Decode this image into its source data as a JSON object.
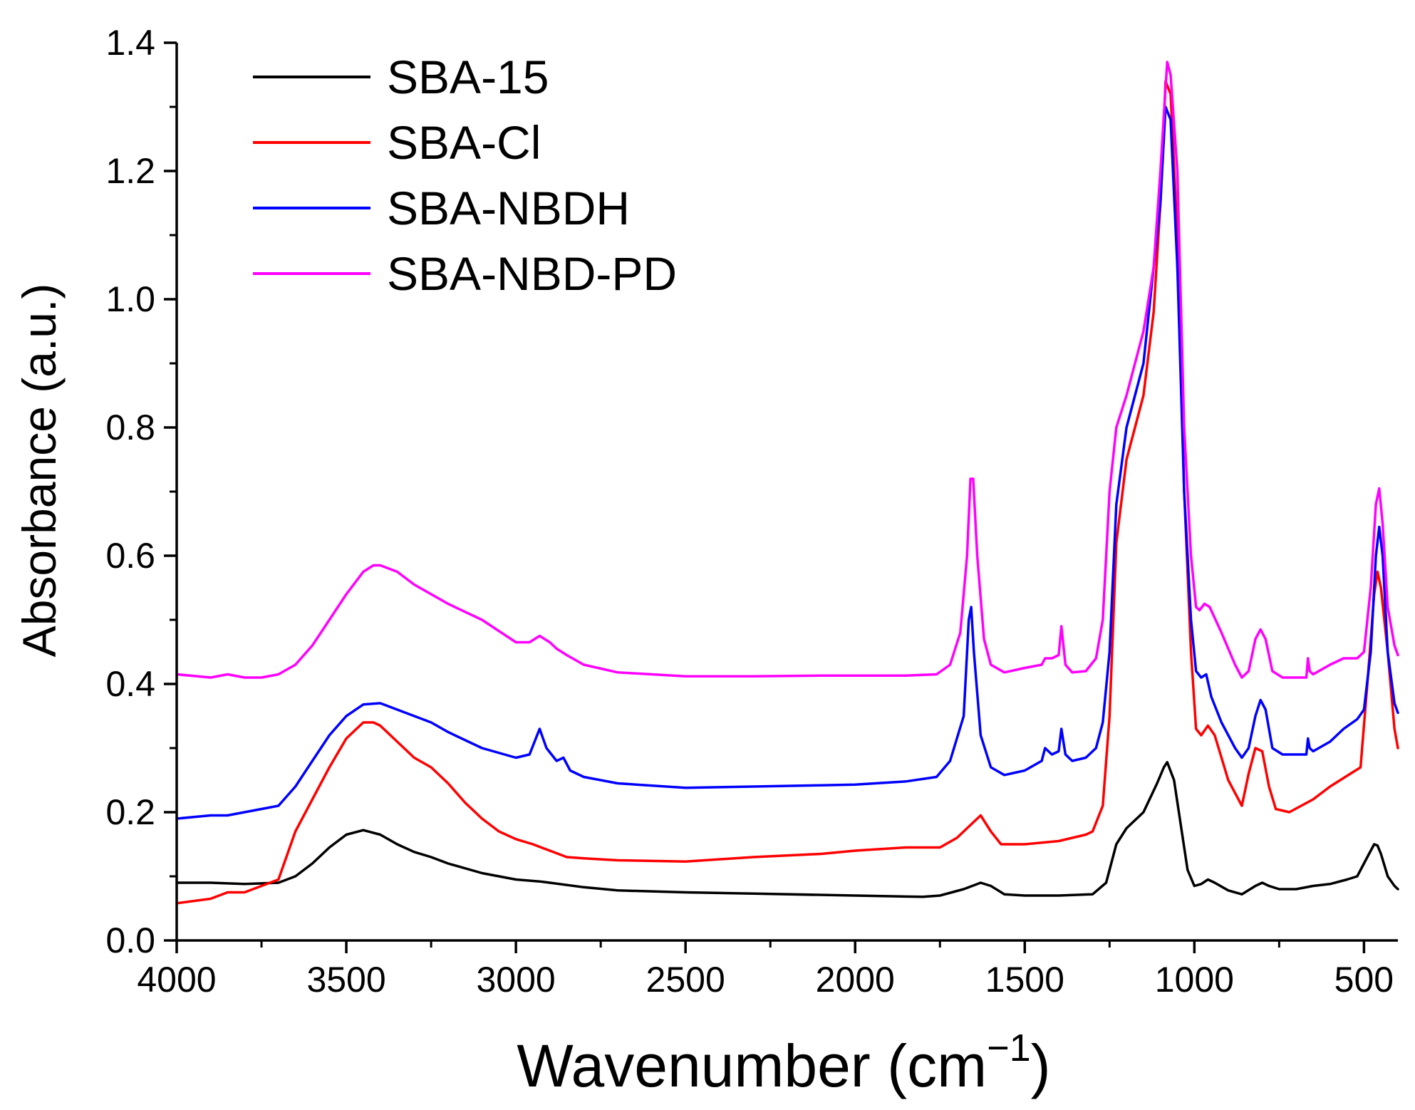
{
  "chart_data": {
    "type": "line",
    "title": "",
    "xlabel": "Wavenumber (cm",
    "xlabel_sup": "−1",
    "xlabel_close": ")",
    "ylabel": "Absorbance (a.u.)",
    "xlim": [
      4000,
      400
    ],
    "ylim": [
      0.0,
      1.4
    ],
    "x_reversed": true,
    "xticks": [
      4000,
      3500,
      3000,
      2500,
      2000,
      1500,
      1000,
      500
    ],
    "xtick_labels": [
      "4000",
      "3500",
      "3000",
      "2500",
      "2000",
      "1500",
      "1000",
      "500"
    ],
    "yticks": [
      0.0,
      0.2,
      0.4,
      0.6,
      0.8,
      1.0,
      1.2,
      1.4
    ],
    "ytick_labels": [
      "0.0",
      "0.2",
      "0.4",
      "0.6",
      "0.8",
      "1.0",
      "1.2",
      "1.4"
    ],
    "grid": false,
    "legend_position": "top-left",
    "series": [
      {
        "name": "SBA-15",
        "color": "#000000",
        "x": [
          4000,
          3900,
          3800,
          3700,
          3650,
          3600,
          3550,
          3500,
          3450,
          3400,
          3350,
          3300,
          3250,
          3200,
          3100,
          3000,
          2930,
          2900,
          2800,
          2700,
          2500,
          2300,
          2000,
          1800,
          1750,
          1680,
          1630,
          1600,
          1560,
          1500,
          1400,
          1300,
          1260,
          1230,
          1200,
          1150,
          1110,
          1090,
          1080,
          1060,
          1040,
          1020,
          1000,
          980,
          960,
          940,
          900,
          860,
          820,
          800,
          780,
          750,
          700,
          650,
          600,
          550,
          520,
          490,
          470,
          460,
          450,
          430,
          410,
          400
        ],
        "y": [
          0.09,
          0.09,
          0.088,
          0.09,
          0.1,
          0.12,
          0.145,
          0.165,
          0.172,
          0.165,
          0.15,
          0.138,
          0.13,
          0.12,
          0.105,
          0.095,
          0.092,
          0.09,
          0.083,
          0.078,
          0.075,
          0.073,
          0.07,
          0.068,
          0.07,
          0.08,
          0.09,
          0.085,
          0.072,
          0.07,
          0.07,
          0.072,
          0.09,
          0.15,
          0.175,
          0.2,
          0.245,
          0.27,
          0.278,
          0.25,
          0.18,
          0.11,
          0.085,
          0.088,
          0.095,
          0.09,
          0.078,
          0.072,
          0.085,
          0.09,
          0.085,
          0.08,
          0.08,
          0.085,
          0.088,
          0.095,
          0.1,
          0.13,
          0.15,
          0.148,
          0.135,
          0.1,
          0.085,
          0.08
        ]
      },
      {
        "name": "SBA-Cl",
        "color": "#ff0000",
        "x": [
          4000,
          3900,
          3850,
          3800,
          3750,
          3700,
          3650,
          3600,
          3550,
          3500,
          3450,
          3420,
          3400,
          3350,
          3300,
          3250,
          3200,
          3150,
          3100,
          3050,
          3000,
          2950,
          2900,
          2850,
          2800,
          2700,
          2500,
          2300,
          2100,
          2000,
          1850,
          1750,
          1700,
          1660,
          1630,
          1600,
          1570,
          1550,
          1500,
          1400,
          1320,
          1300,
          1270,
          1250,
          1230,
          1200,
          1150,
          1120,
          1100,
          1085,
          1070,
          1050,
          1030,
          1010,
          995,
          980,
          960,
          940,
          900,
          860,
          840,
          820,
          800,
          780,
          760,
          720,
          650,
          600,
          540,
          510,
          490,
          470,
          460,
          450,
          430,
          410,
          400
        ],
        "y": [
          0.058,
          0.065,
          0.075,
          0.075,
          0.085,
          0.095,
          0.17,
          0.22,
          0.27,
          0.315,
          0.34,
          0.34,
          0.335,
          0.31,
          0.285,
          0.27,
          0.245,
          0.215,
          0.19,
          0.17,
          0.158,
          0.15,
          0.14,
          0.13,
          0.128,
          0.125,
          0.123,
          0.13,
          0.135,
          0.14,
          0.145,
          0.145,
          0.16,
          0.18,
          0.195,
          0.17,
          0.15,
          0.15,
          0.15,
          0.155,
          0.165,
          0.17,
          0.21,
          0.35,
          0.62,
          0.75,
          0.85,
          0.98,
          1.15,
          1.34,
          1.32,
          1.1,
          0.7,
          0.45,
          0.33,
          0.32,
          0.335,
          0.32,
          0.25,
          0.21,
          0.26,
          0.3,
          0.295,
          0.24,
          0.205,
          0.2,
          0.22,
          0.24,
          0.26,
          0.27,
          0.4,
          0.54,
          0.575,
          0.55,
          0.45,
          0.33,
          0.3
        ]
      },
      {
        "name": "SBA-NBDH",
        "color": "#0000ff",
        "x": [
          4000,
          3900,
          3850,
          3800,
          3750,
          3700,
          3650,
          3600,
          3550,
          3500,
          3450,
          3400,
          3350,
          3300,
          3250,
          3200,
          3100,
          3000,
          2960,
          2930,
          2910,
          2880,
          2860,
          2840,
          2800,
          2700,
          2500,
          2300,
          2100,
          2000,
          1850,
          1760,
          1720,
          1680,
          1665,
          1658,
          1650,
          1630,
          1600,
          1560,
          1500,
          1450,
          1440,
          1420,
          1400,
          1392,
          1380,
          1360,
          1320,
          1290,
          1270,
          1250,
          1230,
          1200,
          1150,
          1120,
          1100,
          1085,
          1070,
          1050,
          1030,
          1010,
          995,
          980,
          965,
          950,
          920,
          880,
          860,
          840,
          820,
          805,
          790,
          770,
          740,
          700,
          670,
          665,
          660,
          650,
          600,
          560,
          520,
          500,
          480,
          465,
          455,
          445,
          430,
          410,
          400
        ],
        "y": [
          0.19,
          0.195,
          0.195,
          0.2,
          0.205,
          0.21,
          0.24,
          0.28,
          0.32,
          0.35,
          0.368,
          0.37,
          0.36,
          0.35,
          0.34,
          0.325,
          0.3,
          0.285,
          0.29,
          0.33,
          0.3,
          0.28,
          0.285,
          0.265,
          0.255,
          0.245,
          0.238,
          0.24,
          0.242,
          0.243,
          0.248,
          0.255,
          0.28,
          0.35,
          0.5,
          0.52,
          0.45,
          0.32,
          0.27,
          0.258,
          0.265,
          0.28,
          0.3,
          0.29,
          0.295,
          0.33,
          0.29,
          0.28,
          0.285,
          0.3,
          0.34,
          0.45,
          0.68,
          0.8,
          0.9,
          1.05,
          1.15,
          1.3,
          1.28,
          1.05,
          0.7,
          0.5,
          0.42,
          0.41,
          0.415,
          0.38,
          0.34,
          0.3,
          0.285,
          0.3,
          0.35,
          0.375,
          0.36,
          0.3,
          0.29,
          0.29,
          0.29,
          0.315,
          0.3,
          0.295,
          0.31,
          0.33,
          0.345,
          0.36,
          0.45,
          0.6,
          0.645,
          0.6,
          0.45,
          0.37,
          0.355
        ]
      },
      {
        "name": "SBA-NBD-PD",
        "color": "#ff00ff",
        "x": [
          4000,
          3900,
          3850,
          3800,
          3750,
          3700,
          3650,
          3600,
          3550,
          3500,
          3450,
          3420,
          3400,
          3350,
          3300,
          3250,
          3200,
          3100,
          3000,
          2960,
          2930,
          2900,
          2880,
          2850,
          2800,
          2700,
          2500,
          2300,
          2100,
          2000,
          1850,
          1760,
          1720,
          1690,
          1670,
          1660,
          1652,
          1640,
          1620,
          1600,
          1560,
          1500,
          1450,
          1440,
          1420,
          1400,
          1392,
          1380,
          1360,
          1320,
          1290,
          1270,
          1250,
          1230,
          1200,
          1150,
          1120,
          1100,
          1080,
          1070,
          1050,
          1030,
          1010,
          995,
          985,
          970,
          955,
          920,
          880,
          860,
          840,
          820,
          805,
          790,
          770,
          740,
          700,
          670,
          665,
          660,
          650,
          600,
          560,
          520,
          500,
          480,
          465,
          455,
          445,
          430,
          410,
          400
        ],
        "y": [
          0.415,
          0.41,
          0.415,
          0.41,
          0.41,
          0.415,
          0.43,
          0.46,
          0.5,
          0.54,
          0.575,
          0.585,
          0.585,
          0.575,
          0.555,
          0.54,
          0.525,
          0.5,
          0.465,
          0.465,
          0.475,
          0.465,
          0.455,
          0.445,
          0.43,
          0.418,
          0.412,
          0.412,
          0.413,
          0.413,
          0.413,
          0.415,
          0.43,
          0.48,
          0.6,
          0.72,
          0.72,
          0.6,
          0.47,
          0.43,
          0.418,
          0.425,
          0.43,
          0.44,
          0.44,
          0.445,
          0.49,
          0.43,
          0.418,
          0.42,
          0.44,
          0.5,
          0.7,
          0.8,
          0.85,
          0.95,
          1.05,
          1.2,
          1.37,
          1.35,
          1.2,
          0.8,
          0.6,
          0.52,
          0.515,
          0.525,
          0.52,
          0.48,
          0.43,
          0.41,
          0.42,
          0.47,
          0.485,
          0.47,
          0.42,
          0.41,
          0.41,
          0.41,
          0.44,
          0.42,
          0.415,
          0.43,
          0.44,
          0.44,
          0.45,
          0.55,
          0.68,
          0.705,
          0.65,
          0.52,
          0.46,
          0.445
        ]
      }
    ]
  }
}
